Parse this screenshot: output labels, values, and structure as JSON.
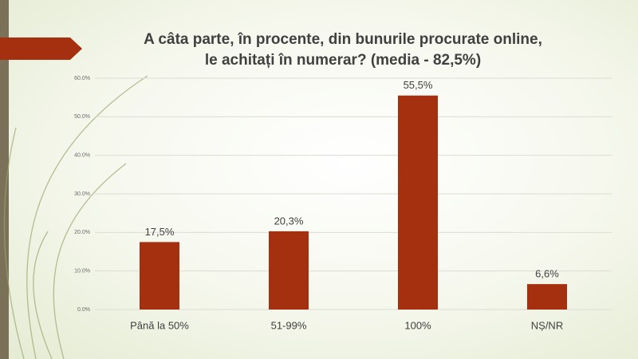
{
  "chart_data": {
    "type": "bar",
    "title": [
      "A câta parte, în procente, din bunurile procurate online,",
      "le achitați în numerar? (media - 82,5%)"
    ],
    "categories": [
      "Până la 50%",
      "51-99%",
      "100%",
      "NȘ/NR"
    ],
    "values": [
      17.5,
      20.3,
      55.5,
      6.6
    ],
    "value_labels": [
      "17,5%",
      "20,3%",
      "55,5%",
      "6,6%"
    ],
    "color": "#a5300f",
    "ylim": [
      0,
      60
    ],
    "yticks": [
      {
        "value": 0,
        "label": "0.0%"
      },
      {
        "value": 10,
        "label": "10.0%"
      },
      {
        "value": 20,
        "label": "20.0%"
      },
      {
        "value": 30,
        "label": "30.0%"
      },
      {
        "value": 40,
        "label": "40.0%"
      },
      {
        "value": 50,
        "label": "50.0%"
      },
      {
        "value": 60,
        "label": "60.0%"
      }
    ],
    "grid": true
  }
}
